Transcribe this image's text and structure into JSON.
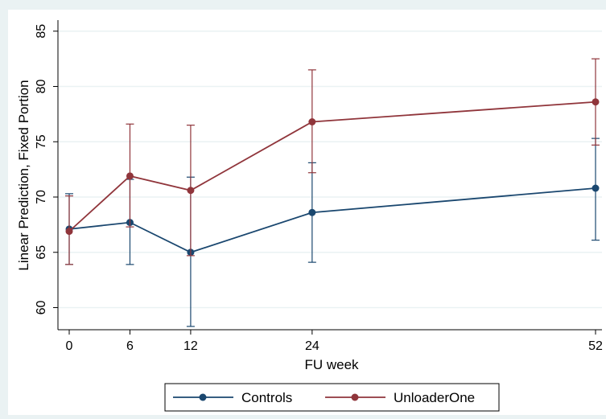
{
  "chart_data": {
    "type": "line",
    "xlabel": "FU week",
    "ylabel": "Linear Prediction, Fixed Portion",
    "x": [
      0,
      6,
      12,
      24,
      52
    ],
    "x_ticks": [
      "0",
      "6",
      "12",
      "24",
      "52"
    ],
    "xlim": [
      0,
      52
    ],
    "y_ticks": [
      "60",
      "65",
      "70",
      "75",
      "80",
      "85"
    ],
    "ylim": [
      58,
      86
    ],
    "grid": true,
    "legend_position": "bottom",
    "series": [
      {
        "name": "Controls",
        "color": "#1a476f",
        "values": [
          67.1,
          67.7,
          65.0,
          68.6,
          70.8
        ],
        "lower": [
          63.9,
          63.9,
          58.3,
          64.1,
          66.1
        ],
        "upper": [
          70.3,
          71.6,
          71.8,
          73.1,
          75.3
        ]
      },
      {
        "name": "UnloaderOne",
        "color": "#90353b",
        "values": [
          66.9,
          71.9,
          70.6,
          76.8,
          78.6
        ],
        "lower": [
          63.9,
          67.3,
          64.7,
          72.2,
          74.7
        ],
        "upper": [
          70.1,
          76.6,
          76.5,
          81.5,
          82.5
        ]
      }
    ]
  }
}
